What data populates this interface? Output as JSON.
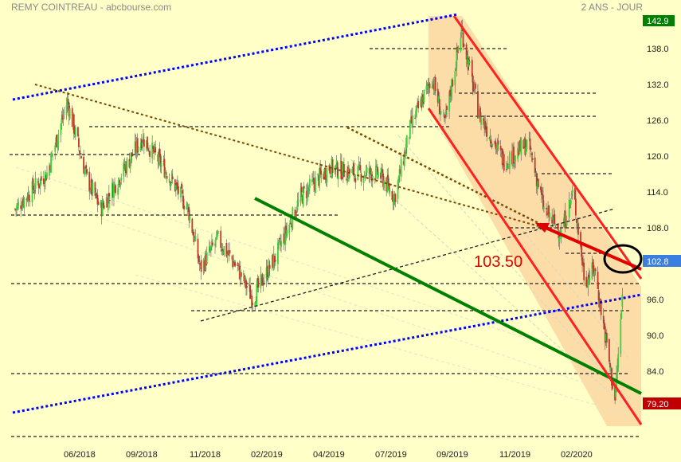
{
  "header": {
    "title": "REMY COINTREAU - abcbourse.com",
    "period": "2 ANS - JOUR"
  },
  "chart_data": {
    "type": "candlestick",
    "title": "REMY COINTREAU",
    "x_tick_labels": [
      "06/2018",
      "09/2018",
      "11/2018",
      "02/2019",
      "04/2019",
      "07/2019",
      "09/2019",
      "11/2019",
      "02/2020"
    ],
    "y_tick_labels": [
      "138.0",
      "132.0",
      "126.0",
      "120.0",
      "114.0",
      "108.0",
      "96.0",
      "90.0",
      "84.0"
    ],
    "ylim": [
      73,
      145
    ],
    "price_badges": [
      {
        "label": "142.9",
        "value": 142.9,
        "color": "#008000"
      },
      {
        "label": "102.8",
        "value": 102.8,
        "color": "#3a7fe0"
      },
      {
        "label": "79.20",
        "value": 79.2,
        "color": "#c00000"
      }
    ],
    "annotation": {
      "text": "103.50",
      "value": 103.5,
      "color": "#e00000"
    },
    "horizontal_levels": [
      126,
      121.5,
      112.5,
      99,
      95,
      86.5,
      75
    ],
    "approx_close_path": [
      {
        "date": "2018-03-12",
        "value": 112
      },
      {
        "date": "2018-04-20",
        "value": 118
      },
      {
        "date": "2018-05-15",
        "value": 130
      },
      {
        "date": "2018-06-08",
        "value": 117
      },
      {
        "date": "2018-06-25",
        "value": 112
      },
      {
        "date": "2018-08-15",
        "value": 124
      },
      {
        "date": "2018-09-15",
        "value": 118
      },
      {
        "date": "2018-10-10",
        "value": 112
      },
      {
        "date": "2018-10-25",
        "value": 102
      },
      {
        "date": "2018-11-15",
        "value": 107
      },
      {
        "date": "2018-12-10",
        "value": 102
      },
      {
        "date": "2018-12-28",
        "value": 97
      },
      {
        "date": "2019-01-25",
        "value": 104
      },
      {
        "date": "2019-02-25",
        "value": 114
      },
      {
        "date": "2019-04-01",
        "value": 119
      },
      {
        "date": "2019-05-01",
        "value": 118
      },
      {
        "date": "2019-06-01",
        "value": 118
      },
      {
        "date": "2019-06-20",
        "value": 114
      },
      {
        "date": "2019-07-10",
        "value": 126
      },
      {
        "date": "2019-08-05",
        "value": 134
      },
      {
        "date": "2019-08-20",
        "value": 126
      },
      {
        "date": "2019-09-10",
        "value": 142
      },
      {
        "date": "2019-10-01",
        "value": 128
      },
      {
        "date": "2019-11-01",
        "value": 120
      },
      {
        "date": "2019-12-01",
        "value": 123
      },
      {
        "date": "2019-12-20",
        "value": 112
      },
      {
        "date": "2020-01-10",
        "value": 108
      },
      {
        "date": "2020-01-25",
        "value": 115
      },
      {
        "date": "2020-02-08",
        "value": 100
      },
      {
        "date": "2020-02-20",
        "value": 102
      },
      {
        "date": "2020-03-05",
        "value": 90
      },
      {
        "date": "2020-03-16",
        "value": 80
      },
      {
        "date": "2020-03-25",
        "value": 97
      }
    ],
    "grid": false,
    "legend": "none"
  }
}
